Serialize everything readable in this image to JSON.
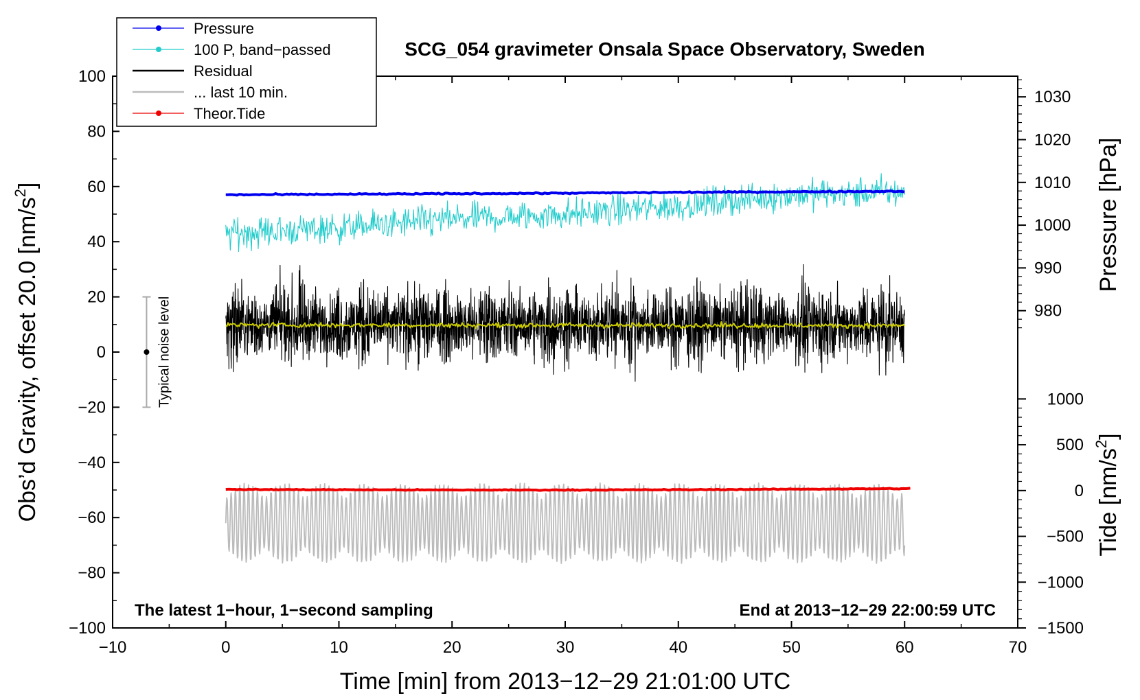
{
  "chart_data": {
    "type": "line",
    "title": "SCG_054 gravimeter Onsala Space Observatory, Sweden",
    "xlabel": "Time [min] from 2013−12−29 21:01:00 UTC",
    "ylabel_left": "Obs’d Gravity, offset 20.0 [nm/s",
    "ylabel_left_sup": "2",
    "ylabel_left_close": "]",
    "ylabel_right_pressure": "Pressure [hPa]",
    "ylabel_right_tide": "Tide [nm/s",
    "ylabel_right_tide_sup": "2",
    "ylabel_right_tide_close": "]",
    "xlim": [
      -10,
      70
    ],
    "ylim": [
      -100,
      100
    ],
    "x_ticks": [
      -10,
      0,
      10,
      20,
      30,
      40,
      50,
      60,
      70
    ],
    "x_tick_labels": [
      "−10",
      "0",
      "10",
      "20",
      "30",
      "40",
      "50",
      "60",
      "70"
    ],
    "y_ticks": [
      100,
      80,
      60,
      40,
      20,
      0,
      -20,
      -40,
      -60,
      -80,
      -100
    ],
    "y_tick_labels": [
      "100",
      "80",
      "60",
      "40",
      "20",
      "0",
      "−20",
      "−40",
      "−60",
      "−80",
      "−100"
    ],
    "pressure_axis": {
      "ticks": [
        1030,
        1020,
        1010,
        1000,
        990,
        980
      ],
      "tick_labels": [
        "1030",
        "1020",
        "1010",
        "1000",
        "990",
        "980"
      ],
      "gravity_equiv_at_1030": 92.5,
      "gravity_per_hpa": 1.55
    },
    "tide_axis": {
      "ticks": [
        1000,
        500,
        0,
        -500,
        -1000,
        -1500
      ],
      "tick_labels": [
        "1000",
        "500",
        "0",
        "−500",
        "−1000",
        "−1500"
      ],
      "gravity_equiv_at_1000": -17,
      "gravity_per_nms2": 0.0332
    },
    "series": [
      {
        "name": "Pressure",
        "color": "#0000ee",
        "x": [
          0,
          10,
          20,
          30,
          40,
          50,
          60
        ],
        "values": [
          57.0,
          57.2,
          57.4,
          57.6,
          57.9,
          58.1,
          58.3
        ]
      },
      {
        "name": "100 P, band−passed",
        "color": "#22cccc",
        "x": [
          0,
          10,
          20,
          30,
          40,
          50,
          60
        ],
        "values": [
          43,
          45,
          48,
          50,
          53,
          57,
          58
        ],
        "noise": 5
      },
      {
        "name": "Residual",
        "color": "#000000",
        "x": [
          0,
          10,
          20,
          30,
          40,
          50,
          60
        ],
        "values": [
          10,
          10,
          10,
          10,
          10,
          10,
          10
        ],
        "noise": 12
      },
      {
        "name": "... last 10 min.",
        "color": "#bbbbbb",
        "x": [
          0,
          60
        ],
        "values": [
          -62,
          -62
        ],
        "noise": 14
      },
      {
        "name": "Theor.Tide",
        "color": "#ee0000",
        "x": [
          0,
          10,
          20,
          30,
          40,
          50,
          60.5
        ],
        "values": [
          -49.8,
          -49.9,
          -50.0,
          -50.0,
          -49.9,
          -49.7,
          -49.5
        ]
      }
    ],
    "running_mean": {
      "color": "#cccc00",
      "x": [
        0,
        60
      ],
      "values": [
        9.8,
        9.6
      ]
    },
    "noise_level": {
      "label": "Typical noise level",
      "x": -7,
      "center": 0,
      "low": -20,
      "high": 20
    },
    "annotations": {
      "left": "The latest 1−hour, 1−second sampling",
      "right": "End at 2013−12−29 22:00:59 UTC"
    },
    "legend": {
      "placement": "top-left",
      "entries": [
        {
          "label": "Pressure",
          "color": "#0000ee",
          "marker": true
        },
        {
          "label": "100 P, band−passed",
          "color": "#22cccc",
          "marker": true
        },
        {
          "label": "Residual",
          "color": "#000000",
          "marker": false
        },
        {
          "label": "... last 10 min.",
          "color": "#bbbbbb",
          "marker": false
        },
        {
          "label": "Theor.Tide",
          "color": "#ee0000",
          "marker": true
        }
      ]
    }
  }
}
